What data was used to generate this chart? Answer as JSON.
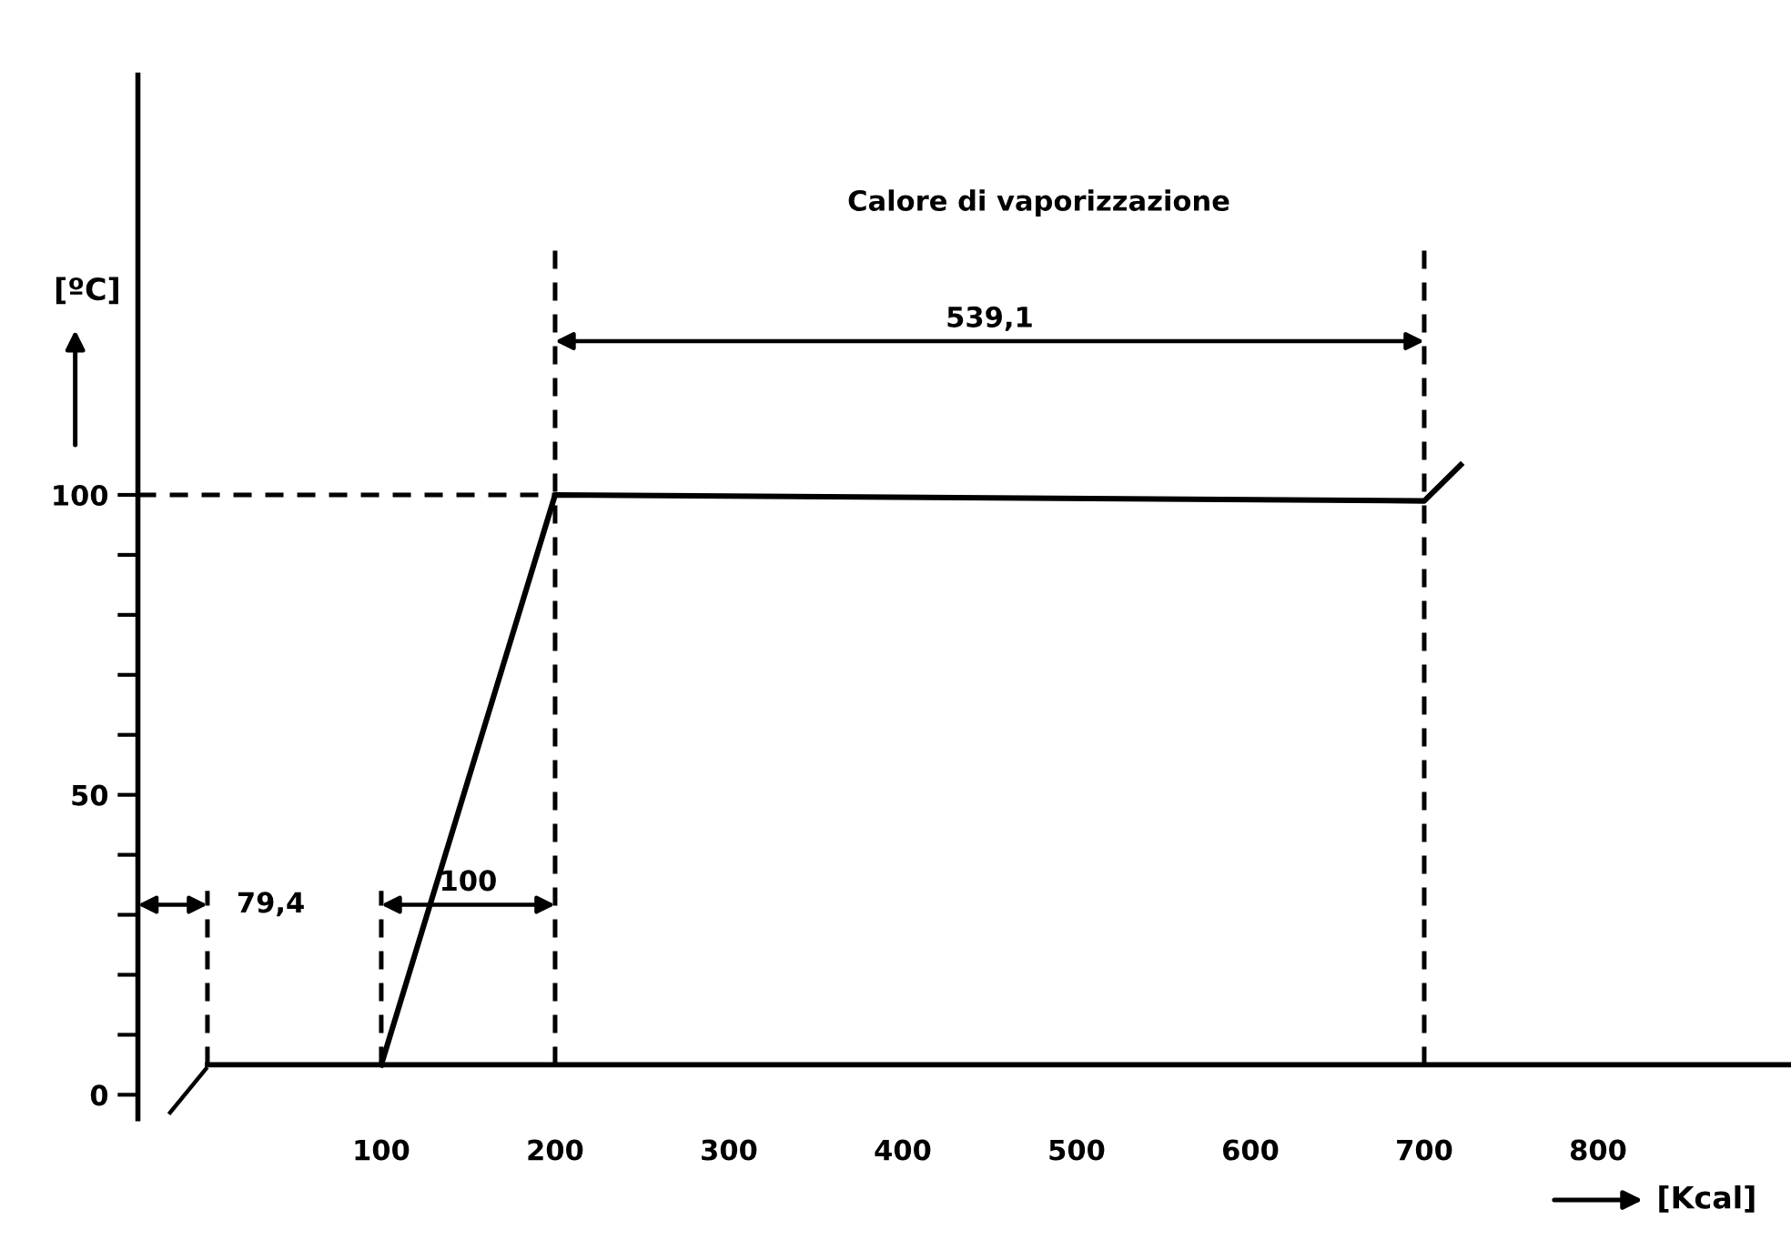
{
  "chart_data": {
    "type": "line",
    "xlabel": "[Kcal]",
    "ylabel": "[ºC]",
    "xlim": [
      -40,
      911
    ],
    "ylim": [
      -4,
      170
    ],
    "xticks": [
      100,
      200,
      300,
      400,
      500,
      600,
      700,
      800
    ],
    "yticks": [
      0,
      {
        "value": 10,
        "label": null
      },
      {
        "value": 20,
        "label": null
      },
      {
        "value": 30,
        "label": null
      },
      {
        "value": 40,
        "label": null
      },
      50,
      {
        "value": 60,
        "label": null
      },
      {
        "value": 70,
        "label": null
      },
      {
        "value": 80,
        "label": null
      },
      {
        "value": 90,
        "label": null
      },
      100
    ],
    "grid": false,
    "ref_lines": [
      {
        "axis": "y",
        "value": 5,
        "color": "#000000",
        "line_style": "solid"
      }
    ],
    "series": [
      {
        "color": "#000000",
        "line_style": "solid",
        "x": [
          100,
          200,
          700,
          721
        ],
        "values": [
          5,
          100,
          99,
          105
        ]
      },
      {
        "color": "#000000",
        "line_style": "dashed",
        "x": [
          0,
          0
        ],
        "values": [
          5,
          34
        ]
      },
      {
        "color": "#000000",
        "line_style": "dashed",
        "x": [
          100,
          100
        ],
        "values": [
          5,
          34
        ]
      },
      {
        "color": "#000000",
        "line_style": "dashed",
        "x": [
          200,
          200
        ],
        "values": [
          5,
          142
        ]
      },
      {
        "color": "#000000",
        "line_style": "dashed",
        "x": [
          700,
          700
        ],
        "values": [
          5,
          142
        ]
      },
      {
        "color": "#000000",
        "line_style": "dashed",
        "x": [
          -40,
          200
        ],
        "values": [
          100,
          100
        ]
      }
    ],
    "annotations": [
      "Calore di vaporizzazione",
      "79,4",
      "100",
      "539,1"
    ]
  }
}
